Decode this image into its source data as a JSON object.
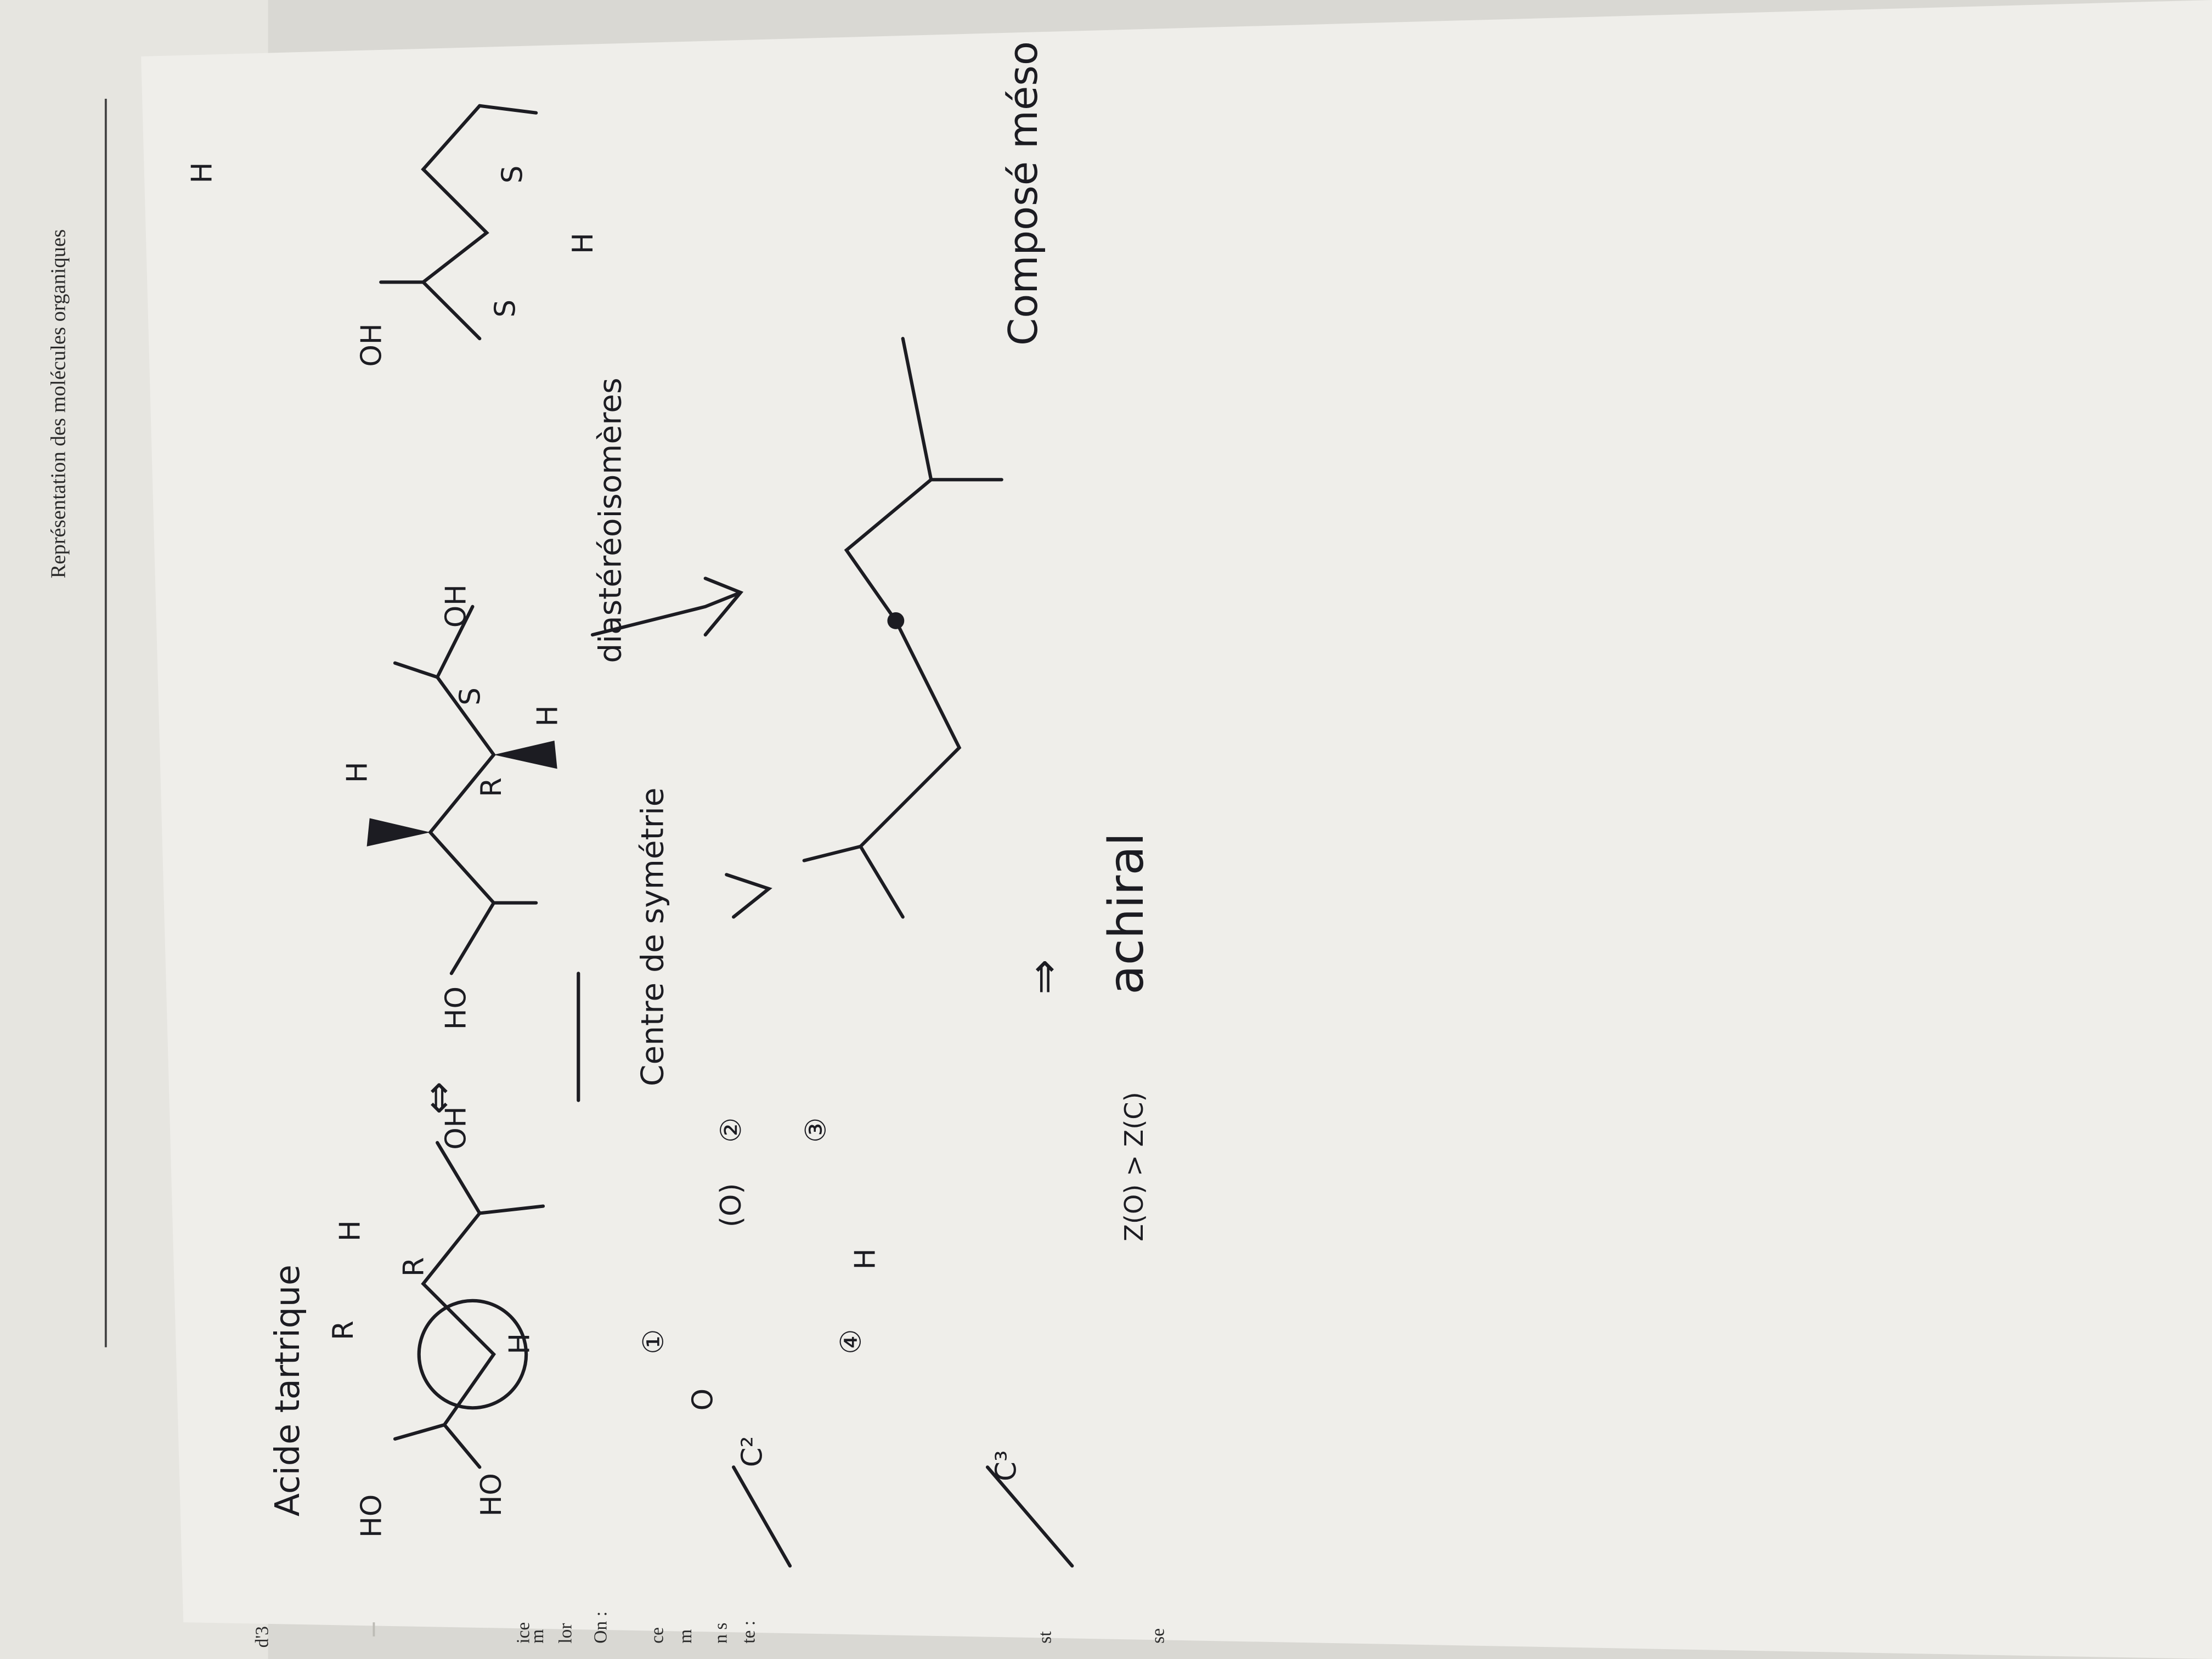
{
  "header": {
    "title": "Représentation des molécules organiques"
  },
  "margin_fragments": [
    "d'3",
    "ice",
    "m",
    "lor",
    "On :",
    "ce",
    "m",
    "n s",
    "te :",
    "st",
    "se"
  ],
  "notes": {
    "heading": "Acide tartrique",
    "center": "Centre de symétrie",
    "diastereo": "diastéréoisomères",
    "achiral": "achiral",
    "meso": "Composé méso",
    "rule": "Z(O) > Z(C)",
    "equiv": "⇔",
    "implies": "⇒"
  },
  "labels": [
    {
      "text": "HO"
    },
    {
      "text": "OH"
    },
    {
      "text": "R"
    },
    {
      "text": "R"
    },
    {
      "text": "H"
    },
    {
      "text": "H"
    },
    {
      "text": "HO"
    },
    {
      "text": "OH"
    },
    {
      "text": "H"
    },
    {
      "text": "H"
    },
    {
      "text": "S"
    },
    {
      "text": "R"
    },
    {
      "text": "HO"
    },
    {
      "text": "OH"
    },
    {
      "text": "S"
    },
    {
      "text": "S"
    },
    {
      "text": "H"
    },
    {
      "text": "H"
    }
  ],
  "priorities": [
    "C²",
    "C³",
    "O",
    "(O)",
    "H",
    "①",
    "②",
    "③",
    "④"
  ]
}
